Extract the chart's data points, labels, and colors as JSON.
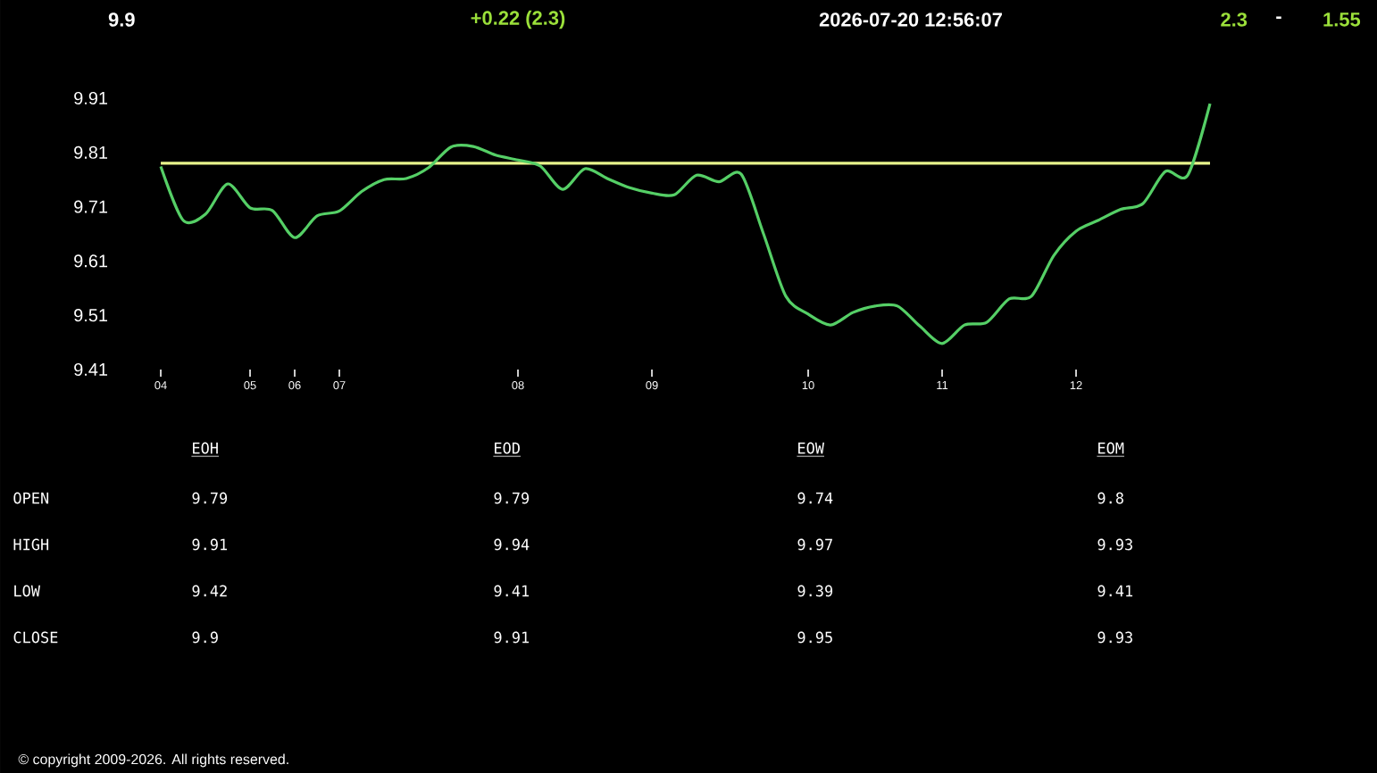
{
  "chart_data": {
    "type": "line",
    "title": "9.9",
    "categories": [
      "04",
      null,
      null,
      null,
      "05",
      null,
      "06",
      null,
      "07",
      null,
      null,
      null,
      null,
      null,
      null,
      null,
      "08",
      null,
      null,
      null,
      null,
      null,
      "09",
      null,
      null,
      null,
      null,
      null,
      null,
      "10",
      null,
      null,
      null,
      null,
      null,
      "11",
      null,
      null,
      null,
      null,
      null,
      "12",
      null,
      null,
      null,
      null,
      null,
      null
    ],
    "series": [
      {
        "color": "#55cf66",
        "values": [
          9.784,
          9.685,
          9.696,
          9.752,
          9.708,
          9.703,
          9.653,
          9.693,
          9.702,
          9.738,
          9.76,
          9.762,
          9.782,
          9.82,
          9.821,
          9.805,
          9.796,
          9.785,
          9.742,
          9.78,
          9.762,
          9.745,
          9.735,
          9.732,
          9.768,
          9.756,
          9.77,
          9.66,
          9.545,
          9.512,
          9.492,
          9.515,
          9.527,
          9.527,
          9.49,
          9.458,
          9.492,
          9.497,
          9.54,
          9.545,
          9.62,
          9.665,
          9.685,
          9.705,
          9.716,
          9.775,
          9.768,
          9.9
        ]
      }
    ],
    "ylim": [
      9.41,
      9.91
    ],
    "yticks": [
      9.41,
      9.51,
      9.61,
      9.71,
      9.81,
      9.91
    ],
    "ref_lines": [
      {
        "axis": "y",
        "value": 9.79,
        "color": "#e8f48c"
      }
    ],
    "marker": "none",
    "line_style": "solid",
    "annotations": [
      "+0.22  (2.3)",
      "2026-07-20   12:56:07",
      "2.3",
      "-",
      "1.55",
      "EOH",
      "EOD",
      "EOW",
      "EOM",
      "OPEN",
      "9.79",
      "9.79",
      "9.74",
      "9.8",
      "HIGH",
      "9.91",
      "9.94",
      "9.97",
      "9.93",
      "LOW",
      "9.42",
      "9.41",
      "9.39",
      "9.41",
      "CLOSE",
      "9.9",
      "9.91",
      "9.95",
      "9.93",
      "© copyright 2009-2026. All rights reserved."
    ]
  }
}
